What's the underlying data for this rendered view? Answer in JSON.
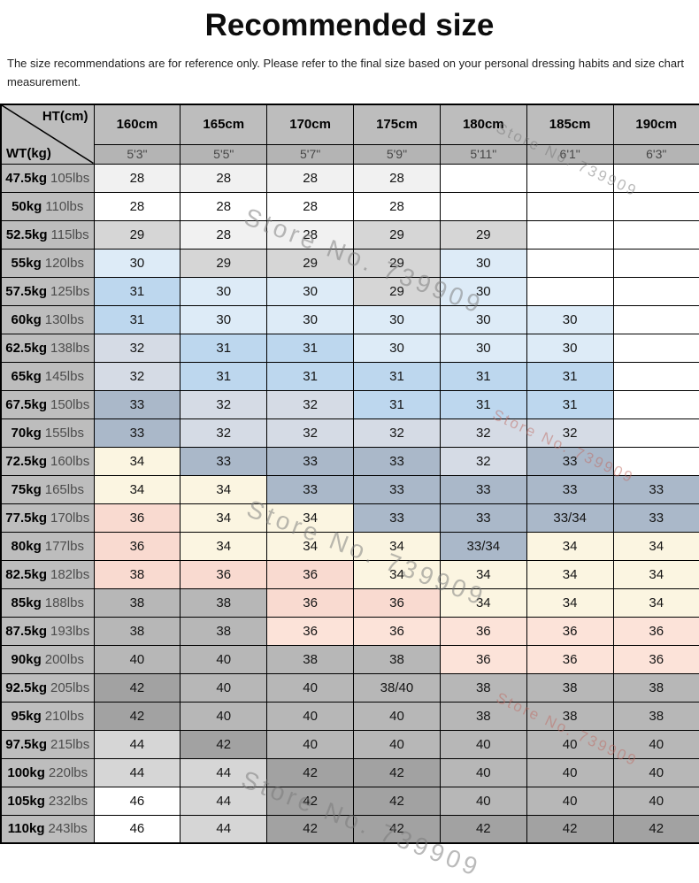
{
  "page": {
    "title": "Recommended size",
    "subtitle": "The size recommendations are for reference only. Please refer to the final size based on your personal dressing habits and size chart measurement."
  },
  "chart_data": {
    "type": "table",
    "title": "Recommended size",
    "corner": {
      "top_right": "HT(cm)",
      "bottom_left": "WT(kg)"
    },
    "columns": [
      {
        "cm": "160cm",
        "ft": "5'3\""
      },
      {
        "cm": "165cm",
        "ft": "5'5\""
      },
      {
        "cm": "170cm",
        "ft": "5'7\""
      },
      {
        "cm": "175cm",
        "ft": "5'9\""
      },
      {
        "cm": "180cm",
        "ft": "5'11\""
      },
      {
        "cm": "185cm",
        "ft": "6'1\""
      },
      {
        "cm": "190cm",
        "ft": "6'3\""
      }
    ],
    "rows": [
      {
        "kg": "47.5kg",
        "lbs": "105lbs",
        "cells": [
          [
            "28",
            "G1"
          ],
          [
            "28",
            "G1"
          ],
          [
            "28",
            "G1"
          ],
          [
            "28",
            "G1"
          ],
          [
            "",
            "W"
          ],
          [
            "",
            "W"
          ],
          [
            "",
            "W"
          ]
        ]
      },
      {
        "kg": "50kg",
        "lbs": "110lbs",
        "cells": [
          [
            "28",
            "W"
          ],
          [
            "28",
            "W"
          ],
          [
            "28",
            "W"
          ],
          [
            "28",
            "W"
          ],
          [
            "",
            "W"
          ],
          [
            "",
            "W"
          ],
          [
            "",
            "W"
          ]
        ]
      },
      {
        "kg": "52.5kg",
        "lbs": "115lbs",
        "cells": [
          [
            "29",
            "G2"
          ],
          [
            "28",
            "G1"
          ],
          [
            "28",
            "G1"
          ],
          [
            "29",
            "G2"
          ],
          [
            "29",
            "G2"
          ],
          [
            "",
            "W"
          ],
          [
            "",
            "W"
          ]
        ]
      },
      {
        "kg": "55kg",
        "lbs": "120lbs",
        "cells": [
          [
            "30",
            "B1"
          ],
          [
            "29",
            "G2"
          ],
          [
            "29",
            "G2"
          ],
          [
            "29",
            "G2"
          ],
          [
            "30",
            "B1"
          ],
          [
            "",
            "W"
          ],
          [
            "",
            "W"
          ]
        ]
      },
      {
        "kg": "57.5kg",
        "lbs": "125lbs",
        "cells": [
          [
            "31",
            "B2"
          ],
          [
            "30",
            "B1"
          ],
          [
            "30",
            "B1"
          ],
          [
            "29",
            "G2"
          ],
          [
            "30",
            "B1"
          ],
          [
            "",
            "W"
          ],
          [
            "",
            "W"
          ]
        ]
      },
      {
        "kg": "60kg",
        "lbs": "130lbs",
        "cells": [
          [
            "31",
            "B2"
          ],
          [
            "30",
            "B1"
          ],
          [
            "30",
            "B1"
          ],
          [
            "30",
            "B1"
          ],
          [
            "30",
            "B1"
          ],
          [
            "30",
            "B1"
          ],
          [
            "",
            "W"
          ]
        ]
      },
      {
        "kg": "62.5kg",
        "lbs": "138lbs",
        "cells": [
          [
            "32",
            "S1"
          ],
          [
            "31",
            "B2"
          ],
          [
            "31",
            "B2"
          ],
          [
            "30",
            "B1"
          ],
          [
            "30",
            "B1"
          ],
          [
            "30",
            "B1"
          ],
          [
            "",
            "W"
          ]
        ]
      },
      {
        "kg": "65kg",
        "lbs": "145lbs",
        "cells": [
          [
            "32",
            "S1"
          ],
          [
            "31",
            "B2"
          ],
          [
            "31",
            "B2"
          ],
          [
            "31",
            "B2"
          ],
          [
            "31",
            "B2"
          ],
          [
            "31",
            "B2"
          ],
          [
            "",
            "W"
          ]
        ]
      },
      {
        "kg": "67.5kg",
        "lbs": "150lbs",
        "cells": [
          [
            "33",
            "S2"
          ],
          [
            "32",
            "S1"
          ],
          [
            "32",
            "S1"
          ],
          [
            "31",
            "B2"
          ],
          [
            "31",
            "B2"
          ],
          [
            "31",
            "B2"
          ],
          [
            "",
            "W"
          ]
        ]
      },
      {
        "kg": "70kg",
        "lbs": "155lbs",
        "cells": [
          [
            "33",
            "S2"
          ],
          [
            "32",
            "S1"
          ],
          [
            "32",
            "S1"
          ],
          [
            "32",
            "S1"
          ],
          [
            "32",
            "S1"
          ],
          [
            "32",
            "S1"
          ],
          [
            "",
            "W"
          ]
        ]
      },
      {
        "kg": "72.5kg",
        "lbs": "160lbs",
        "cells": [
          [
            "34",
            "C"
          ],
          [
            "33",
            "S2"
          ],
          [
            "33",
            "S2"
          ],
          [
            "33",
            "S2"
          ],
          [
            "32",
            "S1"
          ],
          [
            "33",
            "S2"
          ],
          [
            "",
            "W"
          ]
        ]
      },
      {
        "kg": "75kg",
        "lbs": "165lbs",
        "cells": [
          [
            "34",
            "C"
          ],
          [
            "34",
            "C"
          ],
          [
            "33",
            "S2"
          ],
          [
            "33",
            "S2"
          ],
          [
            "33",
            "S2"
          ],
          [
            "33",
            "S2"
          ],
          [
            "33",
            "S2"
          ]
        ]
      },
      {
        "kg": "77.5kg",
        "lbs": "170lbs",
        "cells": [
          [
            "36",
            "P1"
          ],
          [
            "34",
            "C"
          ],
          [
            "34",
            "C"
          ],
          [
            "33",
            "S2"
          ],
          [
            "33",
            "S2"
          ],
          [
            "33/34",
            "S2"
          ],
          [
            "33",
            "S2"
          ]
        ]
      },
      {
        "kg": "80kg",
        "lbs": "177lbs",
        "cells": [
          [
            "36",
            "P1"
          ],
          [
            "34",
            "C"
          ],
          [
            "34",
            "C"
          ],
          [
            "34",
            "C"
          ],
          [
            "33/34",
            "S2"
          ],
          [
            "34",
            "C"
          ],
          [
            "34",
            "C"
          ]
        ]
      },
      {
        "kg": "82.5kg",
        "lbs": "182lbs",
        "cells": [
          [
            "38",
            "P1"
          ],
          [
            "36",
            "P1"
          ],
          [
            "36",
            "P1"
          ],
          [
            "34",
            "C"
          ],
          [
            "34",
            "C"
          ],
          [
            "34",
            "C"
          ],
          [
            "34",
            "C"
          ]
        ]
      },
      {
        "kg": "85kg",
        "lbs": "188lbs",
        "cells": [
          [
            "38",
            "G3"
          ],
          [
            "38",
            "G3"
          ],
          [
            "36",
            "P1"
          ],
          [
            "36",
            "P1"
          ],
          [
            "34",
            "C"
          ],
          [
            "34",
            "C"
          ],
          [
            "34",
            "C"
          ]
        ]
      },
      {
        "kg": "87.5kg",
        "lbs": "193lbs",
        "cells": [
          [
            "38",
            "G3"
          ],
          [
            "38",
            "G3"
          ],
          [
            "36",
            "P2"
          ],
          [
            "36",
            "P2"
          ],
          [
            "36",
            "P2"
          ],
          [
            "36",
            "P2"
          ],
          [
            "36",
            "P2"
          ]
        ]
      },
      {
        "kg": "90kg",
        "lbs": "200lbs",
        "cells": [
          [
            "40",
            "G3"
          ],
          [
            "40",
            "G3"
          ],
          [
            "38",
            "G3"
          ],
          [
            "38",
            "G3"
          ],
          [
            "36",
            "P2"
          ],
          [
            "36",
            "P2"
          ],
          [
            "36",
            "P2"
          ]
        ]
      },
      {
        "kg": "92.5kg",
        "lbs": "205lbs",
        "cells": [
          [
            "42",
            "G4"
          ],
          [
            "40",
            "G3"
          ],
          [
            "40",
            "G3"
          ],
          [
            "38/40",
            "G3"
          ],
          [
            "38",
            "G3"
          ],
          [
            "38",
            "G3"
          ],
          [
            "38",
            "G3"
          ]
        ]
      },
      {
        "kg": "95kg",
        "lbs": "210lbs",
        "cells": [
          [
            "42",
            "G4"
          ],
          [
            "40",
            "G3"
          ],
          [
            "40",
            "G3"
          ],
          [
            "40",
            "G3"
          ],
          [
            "38",
            "G3"
          ],
          [
            "38",
            "G3"
          ],
          [
            "38",
            "G3"
          ]
        ]
      },
      {
        "kg": "97.5kg",
        "lbs": "215lbs",
        "cells": [
          [
            "44",
            "G2"
          ],
          [
            "42",
            "G4"
          ],
          [
            "40",
            "G3"
          ],
          [
            "40",
            "G3"
          ],
          [
            "40",
            "G3"
          ],
          [
            "40",
            "G3"
          ],
          [
            "40",
            "G3"
          ]
        ]
      },
      {
        "kg": "100kg",
        "lbs": "220lbs",
        "cells": [
          [
            "44",
            "G2"
          ],
          [
            "44",
            "G2"
          ],
          [
            "42",
            "G4"
          ],
          [
            "42",
            "G4"
          ],
          [
            "40",
            "G3"
          ],
          [
            "40",
            "G3"
          ],
          [
            "40",
            "G3"
          ]
        ]
      },
      {
        "kg": "105kg",
        "lbs": "232lbs",
        "cells": [
          [
            "46",
            "W"
          ],
          [
            "44",
            "G2"
          ],
          [
            "42",
            "G4"
          ],
          [
            "42",
            "G4"
          ],
          [
            "40",
            "G3"
          ],
          [
            "40",
            "G3"
          ],
          [
            "40",
            "G3"
          ]
        ]
      },
      {
        "kg": "110kg",
        "lbs": "243lbs",
        "cells": [
          [
            "46",
            "W"
          ],
          [
            "44",
            "G2"
          ],
          [
            "42",
            "G4"
          ],
          [
            "42",
            "G4"
          ],
          [
            "42",
            "G4"
          ],
          [
            "42",
            "G4"
          ],
          [
            "42",
            "G4"
          ]
        ]
      }
    ]
  },
  "palette": {
    "W": "#ffffff",
    "G1": "#f1f1f1",
    "G2": "#d6d6d6",
    "G3": "#b7b7b7",
    "G4": "#a2a2a2",
    "B1": "#ddebf7",
    "B2": "#bdd7ee",
    "S1": "#d5dbe5",
    "S2": "#aab8c9",
    "C": "#fbf5e1",
    "P1": "#f9dad0",
    "P2": "#fce3d9",
    "HDR": "#bdbdbd",
    "SUB": "#b4b4b4",
    "LBL": "#bdbdbd"
  },
  "watermark": {
    "text": "Store No. 739909",
    "gray": "#787878",
    "red": "#bf6b62",
    "tones": [
      "gray",
      "gray",
      "red",
      "gray",
      "red",
      "gray"
    ]
  }
}
